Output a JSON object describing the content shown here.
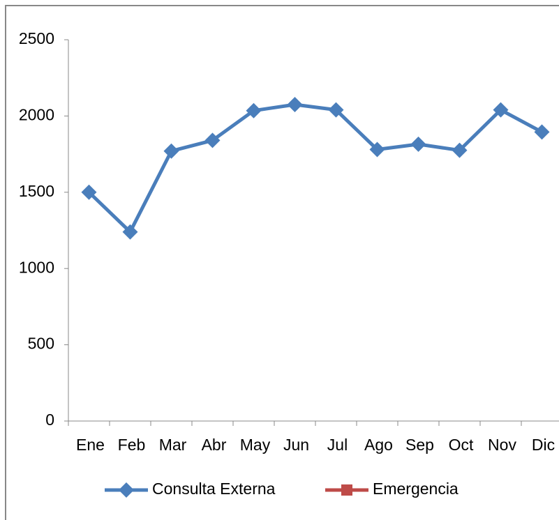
{
  "chart_data": {
    "type": "line",
    "categories": [
      "Ene",
      "Feb",
      "Mar",
      "Abr",
      "May",
      "Jun",
      "Jul",
      "Ago",
      "Sep",
      "Oct",
      "Nov",
      "Dic"
    ],
    "series": [
      {
        "name": "Consulta Externa",
        "color": "#4a7ebb",
        "values": [
          1500,
          1240,
          1770,
          1840,
          2035,
          2075,
          2040,
          1780,
          1815,
          1775,
          2040,
          1895
        ]
      },
      {
        "name": "Emergencia",
        "color": "#be4b48",
        "values": [
          null,
          null,
          null,
          null,
          null,
          null,
          null,
          null,
          null,
          null,
          null,
          null
        ]
      }
    ],
    "ylim": [
      0,
      2500
    ],
    "yticks": [
      0,
      500,
      1000,
      1500,
      2000,
      2500
    ],
    "grid": false,
    "legend": "bottom"
  }
}
